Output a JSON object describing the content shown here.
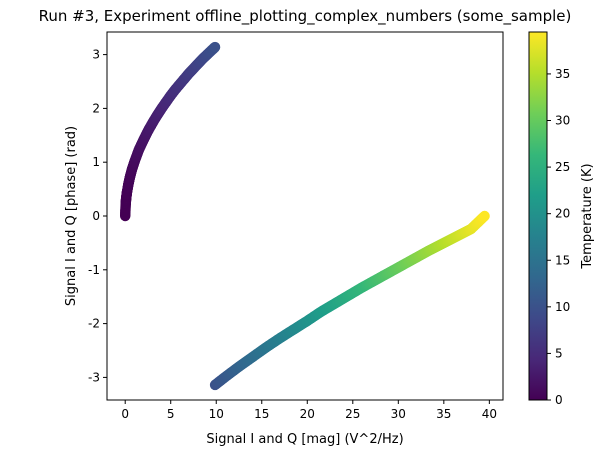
{
  "chart_data": {
    "type": "scatter",
    "title": "Run #3, Experiment offline_plotting_complex_numbers (some_sample)",
    "xlabel": "Signal I and Q [mag] (V^2/Hz)",
    "ylabel": "Signal I and Q [phase] (rad)",
    "xlim": [
      -2.0,
      41.5
    ],
    "ylim": [
      -3.42,
      3.42
    ],
    "xticks": [
      0,
      5,
      10,
      15,
      20,
      25,
      30,
      35,
      40
    ],
    "xtick_labels": [
      "0",
      "5",
      "10",
      "15",
      "20",
      "25",
      "30",
      "35",
      "40"
    ],
    "yticks": [
      -3,
      -2,
      -1,
      0,
      1,
      2,
      3
    ],
    "ytick_labels": [
      "-3",
      "-2",
      "-1",
      "0",
      "1",
      "2",
      "3"
    ],
    "grid": false,
    "colormap": "viridis",
    "colorbar": {
      "label": "Temperature (K)",
      "range": [
        0,
        39.5
      ],
      "ticks": [
        0,
        5,
        10,
        15,
        20,
        25,
        30,
        35
      ],
      "tick_labels": [
        "0",
        "5",
        "10",
        "15",
        "20",
        "25",
        "30",
        "35"
      ],
      "colors": [
        "#440154",
        "#482878",
        "#3e4989",
        "#31688e",
        "#26828e",
        "#1f9e89",
        "#35b779",
        "#6ece58",
        "#b5de2b",
        "#fde725"
      ]
    },
    "series": [
      {
        "x": [
          0.0,
          0.05,
          0.1,
          0.2,
          0.35,
          0.5,
          0.75,
          1.0,
          1.5,
          2.0,
          2.5,
          3.0,
          3.5,
          4.0,
          4.5,
          5.0,
          5.5,
          6.0,
          6.5,
          7.0,
          7.5,
          8.0,
          8.5,
          9.0,
          9.5,
          9.87
        ],
        "y": [
          0.0,
          0.22,
          0.32,
          0.45,
          0.59,
          0.71,
          0.87,
          1.0,
          1.23,
          1.41,
          1.58,
          1.73,
          1.87,
          2.0,
          2.12,
          2.24,
          2.35,
          2.45,
          2.55,
          2.65,
          2.74,
          2.83,
          2.92,
          3.0,
          3.08,
          3.14
        ],
        "color_values": [
          0.0,
          0.05,
          0.1,
          0.2,
          0.35,
          0.5,
          0.75,
          1.0,
          1.5,
          2.0,
          2.5,
          3.0,
          3.5,
          4.0,
          4.5,
          5.0,
          5.5,
          6.0,
          6.5,
          7.0,
          7.5,
          8.0,
          8.5,
          9.0,
          9.5,
          9.87
        ]
      },
      {
        "x": [
          9.87,
          11.0,
          12.5,
          14.0,
          15.5,
          17.0,
          18.5,
          20.0,
          21.5,
          23.0,
          24.5,
          26.0,
          27.5,
          29.0,
          30.5,
          32.0,
          33.5,
          35.0,
          36.5,
          38.0,
          39.48
        ],
        "y": [
          -3.14,
          -2.99,
          -2.8,
          -2.62,
          -2.44,
          -2.27,
          -2.11,
          -1.95,
          -1.78,
          -1.63,
          -1.48,
          -1.33,
          -1.19,
          -1.05,
          -0.91,
          -0.77,
          -0.63,
          -0.5,
          -0.37,
          -0.24,
          0.0
        ],
        "color_values": [
          9.87,
          11.0,
          12.5,
          14.0,
          15.5,
          17.0,
          18.5,
          20.0,
          21.5,
          23.0,
          24.5,
          26.0,
          27.5,
          29.0,
          30.5,
          32.0,
          33.5,
          35.0,
          36.5,
          38.0,
          39.48
        ]
      }
    ]
  }
}
